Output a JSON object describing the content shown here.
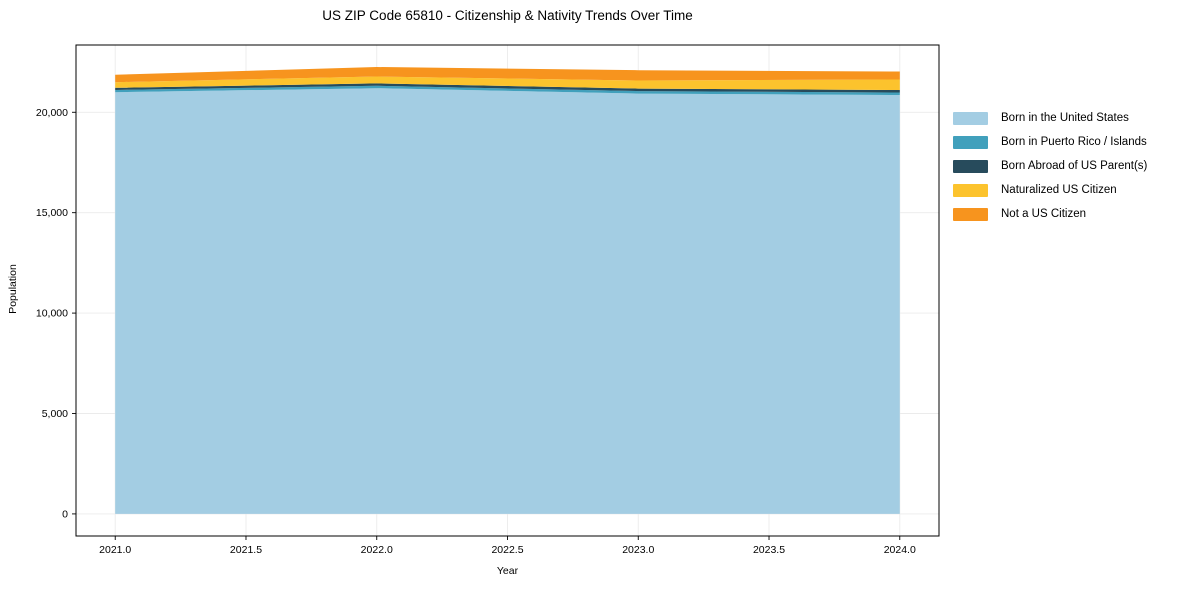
{
  "chart": {
    "title": "US ZIP Code 65810 - Citizenship & Nativity Trends Over Time",
    "xlabel": "Year",
    "ylabel": "Population"
  },
  "colors": {
    "background": "#ffffff",
    "grid": "#ebebeb",
    "spine": "#000000",
    "text": "#000000"
  },
  "chart_data": {
    "type": "area",
    "stacked": true,
    "title": "US ZIP Code 65810 - Citizenship & Nativity Trends Over Time",
    "xlabel": "Year",
    "ylabel": "Population",
    "x": [
      2021,
      2022,
      2023,
      2024
    ],
    "series": [
      {
        "name": "Born in the United States",
        "color": "#a3cde3",
        "values": [
          21000,
          21200,
          20930,
          20860
        ]
      },
      {
        "name": "Born in Puerto Rico / Islands",
        "color": "#41a0bc",
        "values": [
          110,
          120,
          125,
          125
        ]
      },
      {
        "name": "Born Abroad of US Parent(s)",
        "color": "#274b5c",
        "values": [
          110,
          120,
          125,
          125
        ]
      },
      {
        "name": "Naturalized US Citizen",
        "color": "#fcc32d",
        "values": [
          280,
          340,
          400,
          520
        ]
      },
      {
        "name": "Not a US Citizen",
        "color": "#f7941e",
        "values": [
          370,
          475,
          515,
          400
        ]
      }
    ],
    "xlim": [
      2020.85,
      2024.15
    ],
    "ylim": [
      -1100,
      23350
    ],
    "x_ticks": [
      {
        "v": 2021.0,
        "label": "2021.0"
      },
      {
        "v": 2021.5,
        "label": "2021.5"
      },
      {
        "v": 2022.0,
        "label": "2022.0"
      },
      {
        "v": 2022.5,
        "label": "2022.5"
      },
      {
        "v": 2023.0,
        "label": "2023.0"
      },
      {
        "v": 2023.5,
        "label": "2023.5"
      },
      {
        "v": 2024.0,
        "label": "2024.0"
      }
    ],
    "y_ticks": [
      {
        "v": 0,
        "label": "0"
      },
      {
        "v": 5000,
        "label": "5,000"
      },
      {
        "v": 10000,
        "label": "10,000"
      },
      {
        "v": 15000,
        "label": "15,000"
      },
      {
        "v": 20000,
        "label": "20,000"
      }
    ],
    "grid": true,
    "legend_position": "right-outside"
  }
}
